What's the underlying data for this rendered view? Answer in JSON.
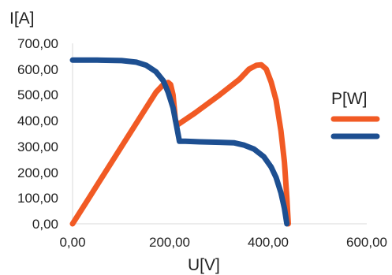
{
  "chart_data": {
    "type": "scatter",
    "xlabel": "U[V]",
    "ylabel": "I[A]",
    "legend_title": "P[W]",
    "legend_position": "right",
    "grid": false,
    "xlim": [
      0,
      600
    ],
    "ylim": [
      0,
      700
    ],
    "x_ticks": [
      "0,00",
      "200,00",
      "400,00",
      "600,00"
    ],
    "y_ticks": [
      "0,00",
      "100,00",
      "200,00",
      "300,00",
      "400,00",
      "500,00",
      "600,00",
      "700,00"
    ],
    "colors": {
      "orange": "#f15a24",
      "blue": "#1d4f91"
    },
    "series": [
      {
        "color": "#f15a24",
        "points": [
          [
            0,
            0
          ],
          [
            30,
            90
          ],
          [
            60,
            180
          ],
          [
            90,
            270
          ],
          [
            120,
            360
          ],
          [
            150,
            450
          ],
          [
            170,
            510
          ],
          [
            185,
            540
          ],
          [
            195,
            548
          ],
          [
            200,
            540
          ],
          [
            205,
            500
          ],
          [
            210,
            400
          ],
          [
            215,
            385
          ],
          [
            250,
            430
          ],
          [
            300,
            500
          ],
          [
            340,
            560
          ],
          [
            360,
            600
          ],
          [
            375,
            615
          ],
          [
            385,
            617
          ],
          [
            395,
            600
          ],
          [
            405,
            550
          ],
          [
            415,
            480
          ],
          [
            425,
            360
          ],
          [
            432,
            240
          ],
          [
            437,
            100
          ],
          [
            440,
            0
          ]
        ]
      },
      {
        "color": "#1d4f91",
        "points": [
          [
            0,
            635
          ],
          [
            50,
            635
          ],
          [
            100,
            633
          ],
          [
            130,
            627
          ],
          [
            150,
            615
          ],
          [
            170,
            590
          ],
          [
            185,
            555
          ],
          [
            195,
            510
          ],
          [
            205,
            450
          ],
          [
            212,
            380
          ],
          [
            218,
            320
          ],
          [
            230,
            320
          ],
          [
            260,
            318
          ],
          [
            300,
            316
          ],
          [
            330,
            314
          ],
          [
            350,
            305
          ],
          [
            370,
            290
          ],
          [
            390,
            260
          ],
          [
            405,
            220
          ],
          [
            415,
            180
          ],
          [
            425,
            120
          ],
          [
            432,
            60
          ],
          [
            437,
            0
          ]
        ]
      }
    ]
  }
}
